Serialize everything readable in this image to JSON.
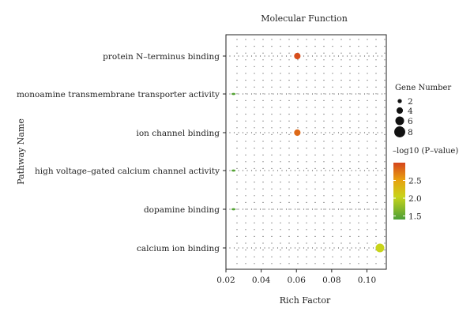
{
  "chart_data": {
    "type": "scatter",
    "title": "Molecular Function",
    "xlabel": "Rich Factor",
    "ylabel": "Pathway Name",
    "xlim": [
      0.02,
      0.111
    ],
    "x_ticks": [
      "0.02",
      "0.04",
      "0.06",
      "0.08",
      "0.10"
    ],
    "x_tick_values": [
      0.02,
      0.04,
      0.06,
      0.08,
      0.1
    ],
    "categories": [
      "protein N–terminus binding",
      "monoamine transmembrane transporter activity",
      "ion channel binding",
      "high voltage–gated calcium channel activity",
      "dopamine binding",
      "calcium ion binding"
    ],
    "points": [
      {
        "category": "protein N–terminus binding",
        "x": 0.0605,
        "gene_number": 4,
        "neg_log10_p": 2.95
      },
      {
        "category": "monoamine transmembrane transporter activity",
        "x": 0.0243,
        "gene_number": 1,
        "neg_log10_p": 1.45
      },
      {
        "category": "ion channel binding",
        "x": 0.0605,
        "gene_number": 4,
        "neg_log10_p": 2.8
      },
      {
        "category": "high voltage–gated calcium channel activity",
        "x": 0.0243,
        "gene_number": 1,
        "neg_log10_p": 1.45
      },
      {
        "category": "dopamine binding",
        "x": 0.0243,
        "gene_number": 1,
        "neg_log10_p": 1.45
      },
      {
        "category": "calcium ion binding",
        "x": 0.1074,
        "gene_number": 6,
        "neg_log10_p": 2.0
      }
    ],
    "size_legend": {
      "title": "Gene Number",
      "labels": [
        "2",
        "4",
        "6",
        "8"
      ],
      "values": [
        2,
        4,
        6,
        8
      ]
    },
    "color_legend": {
      "title": "–log10 (P–value)",
      "labels": [
        "2.5",
        "2.0",
        "1.5"
      ],
      "values": [
        2.5,
        2.0,
        1.5
      ],
      "range": [
        1.4,
        3.0
      ],
      "colors": [
        "#4c9f38",
        "#c8d41a",
        "#e8a010",
        "#d5451d"
      ]
    },
    "legend_position": "right",
    "grid": "dotted"
  }
}
